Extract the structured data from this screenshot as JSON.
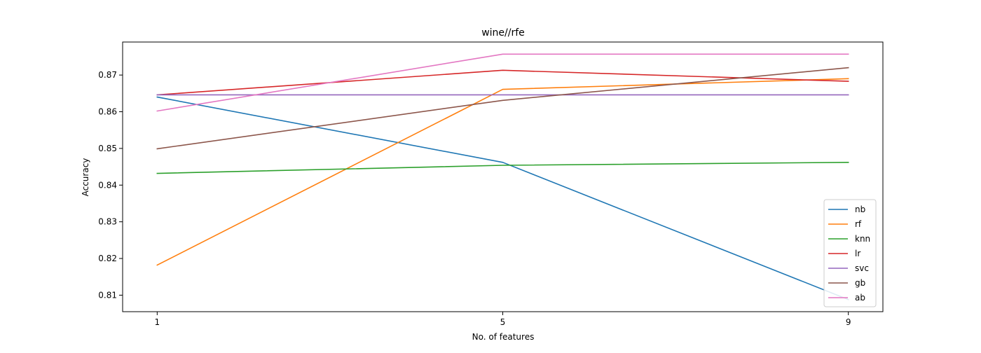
{
  "chart_data": {
    "type": "line",
    "title": "wine//rfe",
    "xlabel": "No. of features",
    "ylabel": "Accuracy",
    "x": [
      1,
      5,
      9
    ],
    "xticks": [
      1,
      5,
      9
    ],
    "xlim": [
      0.6,
      9.4
    ],
    "yticks": [
      0.81,
      0.82,
      0.83,
      0.84,
      0.85,
      0.86,
      0.87
    ],
    "ylim": [
      0.8055,
      0.879
    ],
    "grid": false,
    "legend_position": "lower-right",
    "series": [
      {
        "name": "nb",
        "color": "#1f77b4",
        "values": [
          0.864,
          0.8462,
          0.8088
        ]
      },
      {
        "name": "rf",
        "color": "#ff7f0e",
        "values": [
          0.8182,
          0.8661,
          0.869
        ]
      },
      {
        "name": "knn",
        "color": "#2ca02c",
        "values": [
          0.8432,
          0.8454,
          0.8462
        ]
      },
      {
        "name": "lr",
        "color": "#d62728",
        "values": [
          0.8646,
          0.8713,
          0.8683
        ]
      },
      {
        "name": "svc",
        "color": "#9467bd",
        "values": [
          0.8646,
          0.8646,
          0.8646
        ]
      },
      {
        "name": "gb",
        "color": "#8c564b",
        "values": [
          0.8499,
          0.8631,
          0.872
        ]
      },
      {
        "name": "ab",
        "color": "#e377c2",
        "values": [
          0.8602,
          0.8757,
          0.8757
        ]
      }
    ]
  }
}
